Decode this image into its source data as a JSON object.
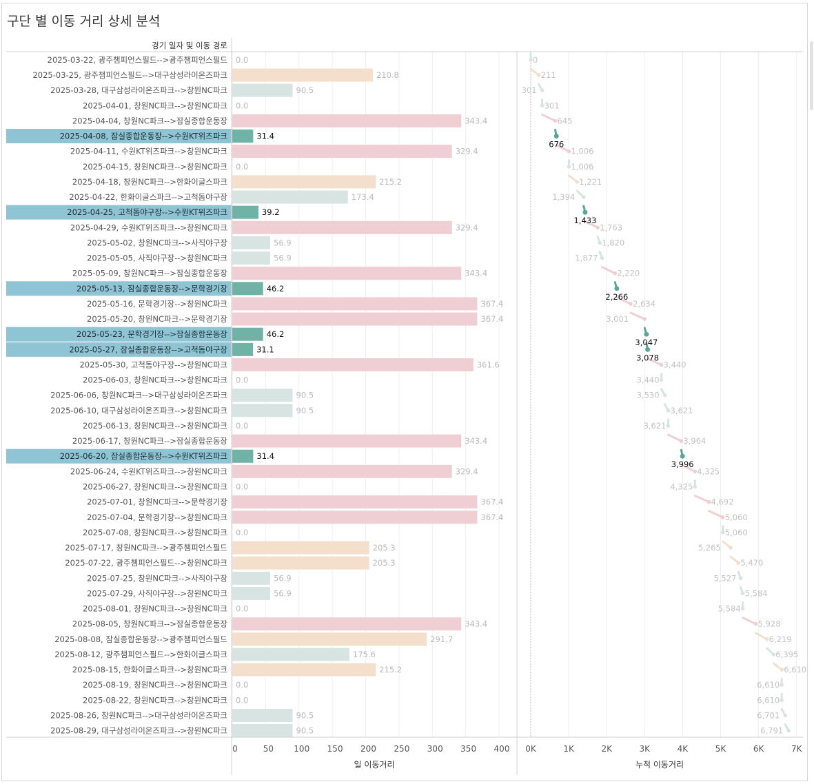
{
  "title": "구단 별 이동 거리 상세 분석",
  "chart_data": {
    "type": "bar+dot",
    "row_header": "경기 일자 및 이동 경로",
    "bar_axis": {
      "label": "일 이동거리",
      "ticks": [
        0,
        50,
        100,
        150,
        200,
        250,
        300,
        350,
        400
      ],
      "range": [
        0,
        420
      ]
    },
    "cum_axis": {
      "label": "누적 이동거리",
      "ticks": [
        0,
        1000,
        2000,
        3000,
        4000,
        5000,
        6000,
        7000
      ],
      "tick_labels": [
        "0K",
        "1K",
        "2K",
        "3K",
        "4K",
        "5K",
        "6K",
        "7K"
      ],
      "range": [
        0,
        7000
      ]
    },
    "colors": {
      "pink": "#f0cfd4",
      "peach": "#f4dfcc",
      "lightgray": "#d8e4e2",
      "teal": "#6fb3a7",
      "teal_dark": "#5aa596",
      "highlight": "#8ec4d3"
    },
    "rows": [
      {
        "label": "2025-03-22, 광주챔피언스필드-->광주챔피언스필드",
        "value": 0.0,
        "value_text": "0.0",
        "cum": 0,
        "prev_text": "",
        "cum_text": "0",
        "color": "lightgray",
        "hl": false
      },
      {
        "label": "2025-03-25, 광주챔피언스필드-->대구삼성라이온즈파크",
        "value": 210.8,
        "value_text": "210.8",
        "cum": 211,
        "prev_text": "",
        "cum_text": "211",
        "color": "peach",
        "hl": false
      },
      {
        "label": "2025-03-28, 대구삼성라이온즈파크-->창원NC파크",
        "value": 90.5,
        "value_text": "90.5",
        "cum": 301,
        "prev_text": "301",
        "cum_text": "",
        "color": "lightgray",
        "hl": false
      },
      {
        "label": "2025-04-01, 창원NC파크-->창원NC파크",
        "value": 0.0,
        "value_text": "0.0",
        "cum": 301,
        "prev_text": "",
        "cum_text": "301",
        "color": "lightgray",
        "hl": false
      },
      {
        "label": "2025-04-04, 창원NC파크-->잠실종합운동장",
        "value": 343.4,
        "value_text": "343.4",
        "cum": 645,
        "prev_text": "",
        "cum_text": "645",
        "color": "pink",
        "hl": false
      },
      {
        "label": "2025-04-08, 잠실종합운동장-->수원KT위즈파크",
        "value": 31.4,
        "value_text": "31.4",
        "cum": 676,
        "prev_text": "",
        "cum_text": "676",
        "color": "teal",
        "hl": true
      },
      {
        "label": "2025-04-11, 수원KT위즈파크-->창원NC파크",
        "value": 329.4,
        "value_text": "329.4",
        "cum": 1006,
        "prev_text": "",
        "cum_text": "1,006",
        "color": "pink",
        "hl": false
      },
      {
        "label": "2025-04-15, 창원NC파크-->창원NC파크",
        "value": 0.0,
        "value_text": "0.0",
        "cum": 1006,
        "prev_text": "",
        "cum_text": "1,006",
        "color": "lightgray",
        "hl": false
      },
      {
        "label": "2025-04-18, 창원NC파크-->한화이글스파크",
        "value": 215.2,
        "value_text": "215.2",
        "cum": 1221,
        "prev_text": "",
        "cum_text": "1,221",
        "color": "peach",
        "hl": false
      },
      {
        "label": "2025-04-22, 한화이글스파크-->고척돔야구장",
        "value": 173.4,
        "value_text": "173.4",
        "cum": 1394,
        "prev_text": "1,394",
        "cum_text": "",
        "color": "lightgray",
        "hl": false
      },
      {
        "label": "2025-04-25, 고척돔야구장-->수원KT위즈파크",
        "value": 39.2,
        "value_text": "39.2",
        "cum": 1433,
        "prev_text": "",
        "cum_text": "1,433",
        "color": "teal",
        "hl": true
      },
      {
        "label": "2025-04-29, 수원KT위즈파크-->창원NC파크",
        "value": 329.4,
        "value_text": "329.4",
        "cum": 1763,
        "prev_text": "",
        "cum_text": "1,763",
        "color": "pink",
        "hl": false
      },
      {
        "label": "2025-05-02, 창원NC파크-->사직야구장",
        "value": 56.9,
        "value_text": "56.9",
        "cum": 1820,
        "prev_text": "",
        "cum_text": "1,820",
        "color": "lightgray",
        "hl": false
      },
      {
        "label": "2025-05-05, 사직야구장-->창원NC파크",
        "value": 56.9,
        "value_text": "56.9",
        "cum": 1877,
        "prev_text": "1,877",
        "cum_text": "",
        "color": "lightgray",
        "hl": false
      },
      {
        "label": "2025-05-09, 창원NC파크-->잠실종합운동장",
        "value": 343.4,
        "value_text": "343.4",
        "cum": 2220,
        "prev_text": "",
        "cum_text": "2,220",
        "color": "pink",
        "hl": false
      },
      {
        "label": "2025-05-13, 잠실종합운동장-->문학경기장",
        "value": 46.2,
        "value_text": "46.2",
        "cum": 2266,
        "prev_text": "",
        "cum_text": "2,266",
        "color": "teal",
        "hl": true
      },
      {
        "label": "2025-05-16, 문학경기장-->창원NC파크",
        "value": 367.4,
        "value_text": "367.4",
        "cum": 2634,
        "prev_text": "",
        "cum_text": "2,634",
        "color": "pink",
        "hl": false
      },
      {
        "label": "2025-05-20, 창원NC파크-->문학경기장",
        "value": 367.4,
        "value_text": "367.4",
        "cum": 3001,
        "prev_text": "3,001",
        "cum_text": "",
        "color": "pink",
        "hl": false
      },
      {
        "label": "2025-05-23, 문학경기장-->잠실종합운동장",
        "value": 46.2,
        "value_text": "46.2",
        "cum": 3047,
        "prev_text": "",
        "cum_text": "3,047",
        "color": "teal",
        "hl": true
      },
      {
        "label": "2025-05-27, 잠실종합운동장-->고척돔야구장",
        "value": 31.1,
        "value_text": "31.1",
        "cum": 3078,
        "prev_text": "",
        "cum_text": "3,078",
        "color": "teal",
        "hl": true
      },
      {
        "label": "2025-05-30, 고척돔야구장-->창원NC파크",
        "value": 361.6,
        "value_text": "361.6",
        "cum": 3440,
        "prev_text": "",
        "cum_text": "3,440",
        "color": "pink",
        "hl": false
      },
      {
        "label": "2025-06-03, 창원NC파크-->창원NC파크",
        "value": 0.0,
        "value_text": "0.0",
        "cum": 3440,
        "prev_text": "3,440",
        "cum_text": "",
        "color": "lightgray",
        "hl": false
      },
      {
        "label": "2025-06-06, 창원NC파크-->대구삼성라이온즈파크",
        "value": 90.5,
        "value_text": "90.5",
        "cum": 3530,
        "prev_text": "3,530",
        "cum_text": "",
        "color": "lightgray",
        "hl": false
      },
      {
        "label": "2025-06-10, 대구삼성라이온즈파크-->창원NC파크",
        "value": 90.5,
        "value_text": "90.5",
        "cum": 3621,
        "prev_text": "",
        "cum_text": "3,621",
        "color": "lightgray",
        "hl": false
      },
      {
        "label": "2025-06-13, 창원NC파크-->창원NC파크",
        "value": 0.0,
        "value_text": "0.0",
        "cum": 3621,
        "prev_text": "3,621",
        "cum_text": "",
        "color": "lightgray",
        "hl": false
      },
      {
        "label": "2025-06-17, 창원NC파크-->잠실종합운동장",
        "value": 343.4,
        "value_text": "343.4",
        "cum": 3964,
        "prev_text": "",
        "cum_text": "3,964",
        "color": "pink",
        "hl": false
      },
      {
        "label": "2025-06-20, 잠실종합운동장-->수원KT위즈파크",
        "value": 31.4,
        "value_text": "31.4",
        "cum": 3996,
        "prev_text": "",
        "cum_text": "3,996",
        "color": "teal",
        "hl": true
      },
      {
        "label": "2025-06-24, 수원KT위즈파크-->창원NC파크",
        "value": 329.4,
        "value_text": "329.4",
        "cum": 4325,
        "prev_text": "",
        "cum_text": "4,325",
        "color": "pink",
        "hl": false
      },
      {
        "label": "2025-06-27, 창원NC파크-->창원NC파크",
        "value": 0.0,
        "value_text": "0.0",
        "cum": 4325,
        "prev_text": "4,325",
        "cum_text": "",
        "color": "lightgray",
        "hl": false
      },
      {
        "label": "2025-07-01, 창원NC파크-->문학경기장",
        "value": 367.4,
        "value_text": "367.4",
        "cum": 4692,
        "prev_text": "",
        "cum_text": "4,692",
        "color": "pink",
        "hl": false
      },
      {
        "label": "2025-07-04, 문학경기장-->창원NC파크",
        "value": 367.4,
        "value_text": "367.4",
        "cum": 5060,
        "prev_text": "",
        "cum_text": "5,060",
        "color": "pink",
        "hl": false
      },
      {
        "label": "2025-07-08, 창원NC파크-->창원NC파크",
        "value": 0.0,
        "value_text": "0.0",
        "cum": 5060,
        "prev_text": "",
        "cum_text": "5,060",
        "color": "lightgray",
        "hl": false
      },
      {
        "label": "2025-07-17, 창원NC파크-->광주챔피언스필드",
        "value": 205.3,
        "value_text": "205.3",
        "cum": 5265,
        "prev_text": "5,265",
        "cum_text": "",
        "color": "peach",
        "hl": false
      },
      {
        "label": "2025-07-22, 광주챔피언스필드-->창원NC파크",
        "value": 205.3,
        "value_text": "205.3",
        "cum": 5470,
        "prev_text": "",
        "cum_text": "5,470",
        "color": "peach",
        "hl": false
      },
      {
        "label": "2025-07-25, 창원NC파크-->사직야구장",
        "value": 56.9,
        "value_text": "56.9",
        "cum": 5527,
        "prev_text": "5,527",
        "cum_text": "",
        "color": "lightgray",
        "hl": false
      },
      {
        "label": "2025-07-29, 사직야구장-->창원NC파크",
        "value": 56.9,
        "value_text": "56.9",
        "cum": 5584,
        "prev_text": "",
        "cum_text": "5,584",
        "color": "lightgray",
        "hl": false
      },
      {
        "label": "2025-08-01, 창원NC파크-->창원NC파크",
        "value": 0.0,
        "value_text": "0.0",
        "cum": 5584,
        "prev_text": "5,584",
        "cum_text": "",
        "color": "lightgray",
        "hl": false
      },
      {
        "label": "2025-08-05, 창원NC파크-->잠실종합운동장",
        "value": 343.4,
        "value_text": "343.4",
        "cum": 5928,
        "prev_text": "",
        "cum_text": "5,928",
        "color": "pink",
        "hl": false
      },
      {
        "label": "2025-08-08, 잠실종합운동장-->광주챔피언스필드",
        "value": 291.7,
        "value_text": "291.7",
        "cum": 6219,
        "prev_text": "",
        "cum_text": "6,219",
        "color": "peach",
        "hl": false
      },
      {
        "label": "2025-08-12, 광주챔피언스필드-->한화이글스파크",
        "value": 175.6,
        "value_text": "175.6",
        "cum": 6395,
        "prev_text": "",
        "cum_text": "6,395",
        "color": "lightgray",
        "hl": false
      },
      {
        "label": "2025-08-15, 한화이글스파크-->창원NC파크",
        "value": 215.2,
        "value_text": "215.2",
        "cum": 6610,
        "prev_text": "",
        "cum_text": "6,610",
        "color": "peach",
        "hl": false
      },
      {
        "label": "2025-08-19, 창원NC파크-->창원NC파크",
        "value": 0.0,
        "value_text": "0.0",
        "cum": 6610,
        "prev_text": "6,610",
        "cum_text": "",
        "color": "lightgray",
        "hl": false
      },
      {
        "label": "2025-08-22, 창원NC파크-->창원NC파크",
        "value": 0.0,
        "value_text": "0.0",
        "cum": 6610,
        "prev_text": "6,610",
        "cum_text": "",
        "color": "lightgray",
        "hl": false
      },
      {
        "label": "2025-08-26, 창원NC파크-->대구삼성라이온즈파크",
        "value": 90.5,
        "value_text": "90.5",
        "cum": 6701,
        "prev_text": "6,701",
        "cum_text": "",
        "color": "lightgray",
        "hl": false
      },
      {
        "label": "2025-08-29, 대구삼성라이온즈파크-->창원NC파크",
        "value": 90.5,
        "value_text": "90.5",
        "cum": 6791,
        "prev_text": "6,791",
        "cum_text": "",
        "color": "lightgray",
        "hl": false
      }
    ]
  }
}
